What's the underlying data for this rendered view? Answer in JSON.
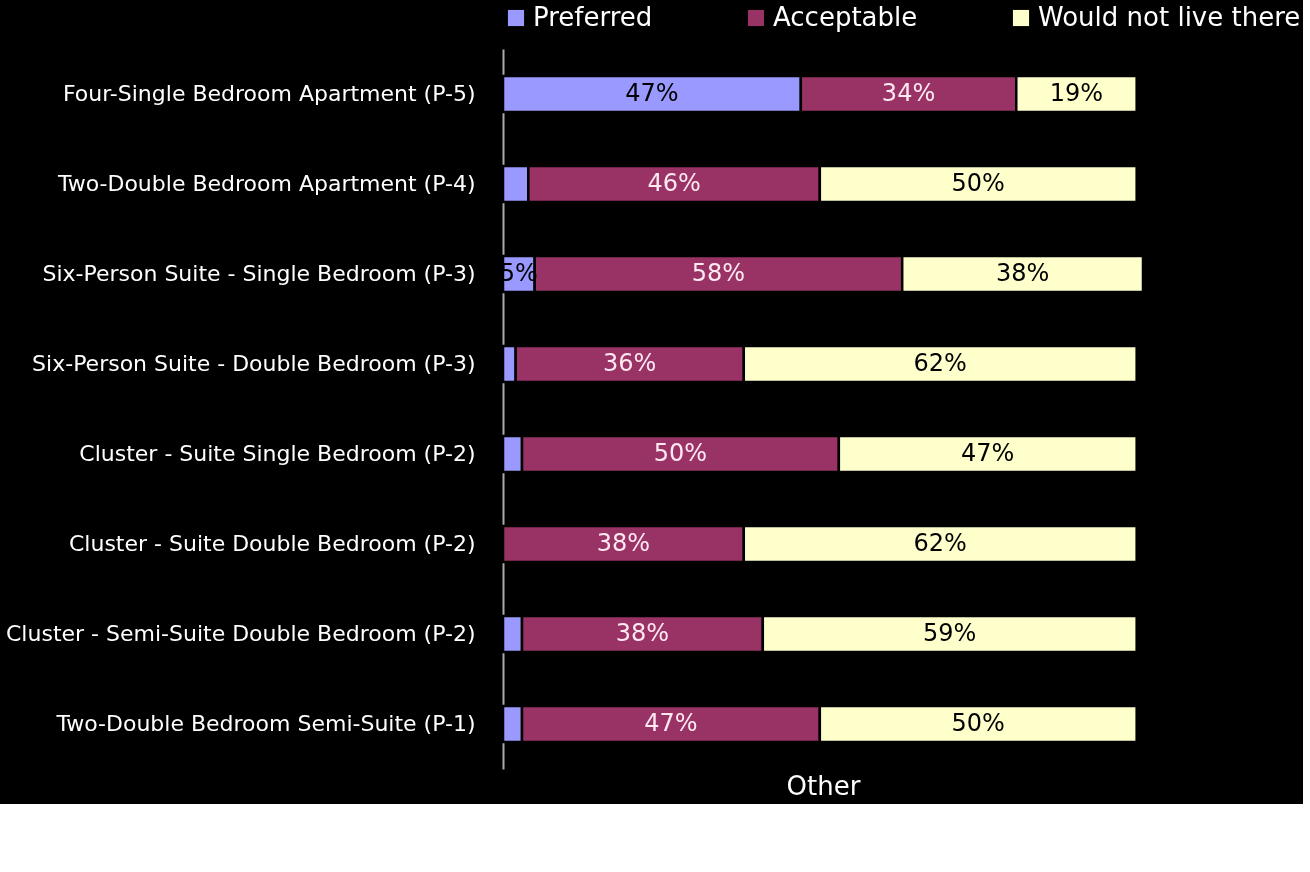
{
  "chart_data": {
    "type": "bar",
    "orientation": "horizontal",
    "stacked": true,
    "xlabel": "Other",
    "categories": [
      "Four-Single Bedroom Apartment (P-5)",
      "Two-Double Bedroom Apartment (P-4)",
      "Six-Person Suite - Single Bedroom (P-3)",
      "Six-Person Suite - Double Bedroom (P-3)",
      "Cluster - Suite Single Bedroom (P-2)",
      "Cluster - Suite Double Bedroom (P-2)",
      "Cluster - Semi-Suite Double Bedroom (P-2)",
      "Two-Double Bedroom Semi-Suite (P-1)"
    ],
    "series": [
      {
        "name": "Preferred",
        "color": "#9999ff",
        "values": [
          47,
          4,
          5,
          2,
          3,
          0,
          3,
          3
        ],
        "value_labels": [
          "47%",
          null,
          "5%",
          null,
          null,
          null,
          null,
          null
        ]
      },
      {
        "name": "Acceptable",
        "color": "#993366",
        "values": [
          34,
          46,
          58,
          36,
          50,
          38,
          38,
          47
        ],
        "value_labels": [
          "34%",
          "46%",
          "58%",
          "36%",
          "50%",
          "38%",
          "38%",
          "47%"
        ]
      },
      {
        "name": "Would not live there",
        "color": "#ffffcc",
        "values": [
          19,
          50,
          38,
          62,
          47,
          62,
          59,
          50
        ],
        "value_labels": [
          "19%",
          "50%",
          "38%",
          "62%",
          "47%",
          "62%",
          "59%",
          "50%"
        ]
      }
    ],
    "xlim": [
      0,
      101
    ],
    "legend": "top"
  }
}
